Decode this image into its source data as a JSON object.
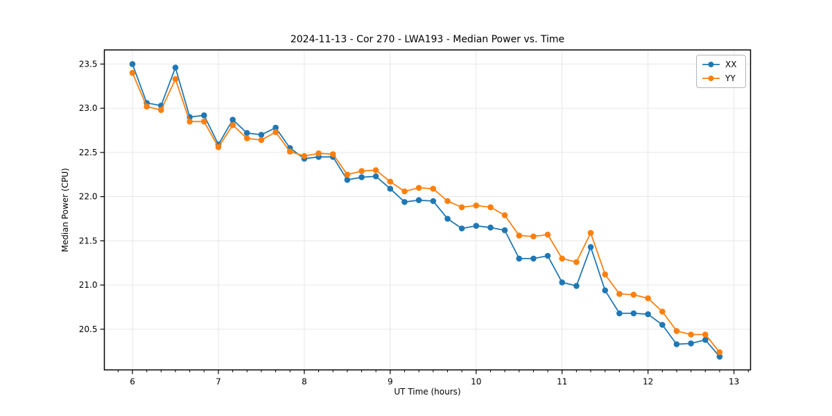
{
  "chart_data": {
    "type": "line",
    "title": "2024-11-13 - Cor 270 - LWA193 - Median Power vs. Time",
    "xlabel": "UT Time (hours)",
    "ylabel": "Median Power (CPU)",
    "xlim": [
      5.673,
      13.193
    ],
    "ylim": [
      20.04,
      23.66
    ],
    "xticks": [
      6,
      7,
      8,
      9,
      10,
      11,
      12,
      13
    ],
    "yticks": [
      20.5,
      21.0,
      21.5,
      22.0,
      22.5,
      23.0,
      23.5
    ],
    "x_minor_tick_step": 0.166667,
    "grid": true,
    "legend_position": "upper right",
    "grid_color": "#e6e6e6",
    "spine_color": "#000000",
    "x": [
      6,
      6.167,
      6.333,
      6.5,
      6.667,
      6.833,
      7,
      7.167,
      7.333,
      7.5,
      7.667,
      7.833,
      8,
      8.167,
      8.333,
      8.5,
      8.667,
      8.833,
      9,
      9.167,
      9.333,
      9.5,
      9.667,
      9.833,
      10,
      10.167,
      10.333,
      10.5,
      10.667,
      10.833,
      11,
      11.167,
      11.333,
      11.5,
      11.667,
      11.833,
      12,
      12.167,
      12.333,
      12.5,
      12.667,
      12.833
    ],
    "series": [
      {
        "name": "XX",
        "color": "#1f77b4",
        "values": [
          23.5,
          23.06,
          23.03,
          23.46,
          22.9,
          22.92,
          22.59,
          22.87,
          22.72,
          22.7,
          22.78,
          22.55,
          22.43,
          22.45,
          22.45,
          22.19,
          22.22,
          22.23,
          22.09,
          21.94,
          21.96,
          21.95,
          21.75,
          21.64,
          21.67,
          21.65,
          21.62,
          21.3,
          21.3,
          21.33,
          21.03,
          20.99,
          21.43,
          20.94,
          20.68,
          20.68,
          20.67,
          20.55,
          20.33,
          20.34,
          20.38,
          20.19
        ]
      },
      {
        "name": "YY",
        "color": "#ff7f0e",
        "values": [
          23.4,
          23.02,
          22.98,
          23.33,
          22.85,
          22.85,
          22.56,
          22.81,
          22.66,
          22.64,
          22.73,
          22.51,
          22.46,
          22.49,
          22.48,
          22.25,
          22.29,
          22.3,
          22.17,
          22.06,
          22.1,
          22.09,
          21.95,
          21.88,
          21.9,
          21.88,
          21.79,
          21.56,
          21.55,
          21.57,
          21.3,
          21.26,
          21.59,
          21.12,
          20.9,
          20.89,
          20.85,
          20.7,
          20.48,
          20.44,
          20.44,
          20.24
        ]
      }
    ]
  }
}
